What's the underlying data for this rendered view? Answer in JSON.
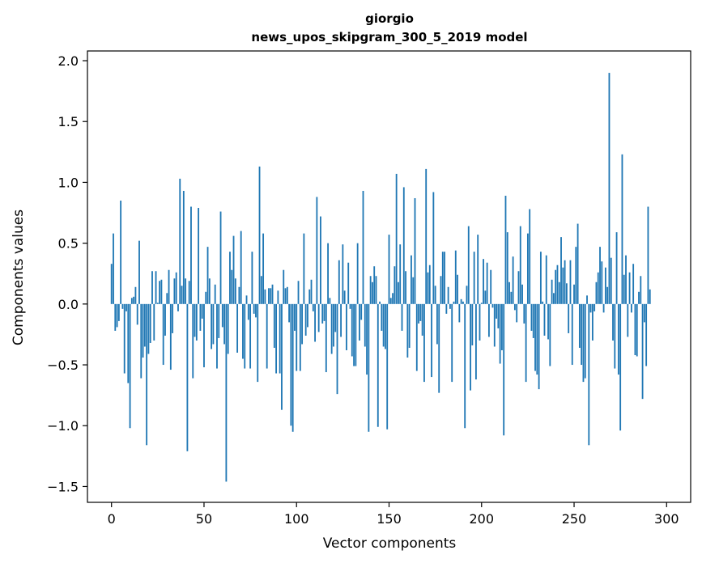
{
  "chart_data": {
    "type": "bar",
    "title_line1": "giorgio",
    "title_line2": "news_upos_skipgram_300_5_2019 model",
    "xlabel": "Vector components",
    "ylabel": "Components values",
    "xlim": [
      -13,
      313
    ],
    "ylim": [
      -1.63,
      2.08
    ],
    "xticks": [
      0,
      50,
      100,
      150,
      200,
      250,
      300
    ],
    "yticks": [
      -1.5,
      -1.0,
      -0.5,
      0.0,
      0.5,
      1.0,
      1.5,
      2.0
    ],
    "ytick_labels": [
      "−1.5",
      "−1.0",
      "−0.5",
      "0.0",
      "0.5",
      "1.0",
      "1.5",
      "2.0"
    ],
    "bar_color": "#1f77b4",
    "grid": false,
    "values": [
      0.33,
      0.58,
      -0.22,
      -0.19,
      -0.14,
      0.85,
      -0.04,
      -0.57,
      -0.06,
      -0.65,
      -1.02,
      0.05,
      0.06,
      0.14,
      -0.17,
      0.52,
      -0.61,
      -0.44,
      -0.35,
      -1.16,
      -0.41,
      -0.32,
      0.27,
      -0.3,
      0.27,
      0.01,
      0.19,
      0.2,
      -0.5,
      -0.26,
      0.09,
      0.28,
      -0.54,
      -0.24,
      0.21,
      0.26,
      -0.06,
      1.03,
      0.15,
      0.93,
      0.21,
      -1.21,
      0.19,
      0.8,
      -0.61,
      -0.27,
      -0.3,
      0.79,
      -0.22,
      -0.12,
      -0.52,
      0.1,
      0.47,
      0.21,
      -0.37,
      -0.33,
      0.16,
      -0.53,
      -0.28,
      0.76,
      -0.19,
      -0.33,
      -1.46,
      -0.41,
      0.43,
      0.28,
      0.56,
      0.21,
      -0.4,
      0.14,
      0.6,
      -0.45,
      -0.53,
      0.07,
      -0.13,
      -0.53,
      0.43,
      -0.08,
      -0.11,
      -0.64,
      1.13,
      0.23,
      0.58,
      0.12,
      -0.53,
      0.13,
      0.13,
      0.16,
      -0.36,
      -0.57,
      0.11,
      -0.57,
      -0.87,
      0.28,
      0.13,
      0.14,
      -0.15,
      -1.0,
      -1.05,
      -0.22,
      -0.55,
      0.19,
      -0.55,
      -0.33,
      0.58,
      -0.26,
      -0.19,
      0.12,
      0.2,
      -0.06,
      -0.31,
      0.88,
      -0.23,
      0.72,
      -0.16,
      -0.14,
      -0.56,
      0.5,
      0.05,
      -0.41,
      -0.35,
      -0.23,
      -0.74,
      0.36,
      -0.27,
      0.49,
      0.11,
      -0.38,
      0.34,
      -0.04,
      -0.43,
      -0.51,
      -0.51,
      0.5,
      -0.3,
      -0.13,
      0.93,
      -0.35,
      -0.58,
      -1.05,
      0.23,
      0.18,
      0.31,
      0.23,
      -1.01,
      0.02,
      -0.22,
      -0.35,
      -0.37,
      -1.03,
      0.57,
      0.05,
      0.09,
      0.31,
      1.07,
      0.18,
      0.49,
      -0.22,
      0.96,
      0.27,
      -0.44,
      -0.36,
      0.4,
      0.22,
      0.87,
      -0.55,
      -0.16,
      -0.14,
      -0.26,
      -0.64,
      1.11,
      0.26,
      0.32,
      -0.6,
      0.92,
      0.15,
      -0.33,
      -0.73,
      0.23,
      0.43,
      0.43,
      -0.08,
      0.14,
      -0.04,
      -0.64,
      0.02,
      0.44,
      0.24,
      -0.15,
      0.04,
      0.02,
      -1.02,
      0.15,
      0.64,
      -0.71,
      -0.34,
      0.43,
      -0.62,
      0.57,
      -0.3,
      0.01,
      0.37,
      0.11,
      0.34,
      -0.27,
      0.28,
      -0.03,
      -0.35,
      -0.12,
      -0.2,
      -0.49,
      -0.38,
      -1.08,
      0.89,
      0.59,
      0.18,
      0.1,
      0.39,
      -0.05,
      -0.15,
      0.27,
      0.64,
      0.16,
      -0.16,
      -0.64,
      0.58,
      0.78,
      -0.22,
      -0.28,
      -0.55,
      -0.58,
      -0.7,
      0.43,
      0.02,
      -0.26,
      0.4,
      -0.29,
      -0.51,
      0.2,
      0.09,
      0.28,
      0.32,
      0.18,
      0.55,
      0.3,
      0.36,
      0.17,
      -0.24,
      0.36,
      -0.5,
      0.16,
      0.47,
      0.66,
      -0.36,
      -0.5,
      -0.64,
      -0.61,
      0.07,
      -1.16,
      -0.07,
      -0.3,
      -0.06,
      0.18,
      0.26,
      0.47,
      0.35,
      -0.07,
      0.3,
      0.14,
      1.9,
      0.38,
      -0.3,
      -0.53,
      0.59,
      -0.58,
      -1.04,
      1.23,
      0.24,
      0.4,
      -0.27,
      0.26,
      -0.07,
      0.33,
      -0.42,
      -0.43,
      0.1,
      0.23,
      -0.78,
      -0.15,
      -0.51,
      0.8,
      0.12
    ]
  }
}
